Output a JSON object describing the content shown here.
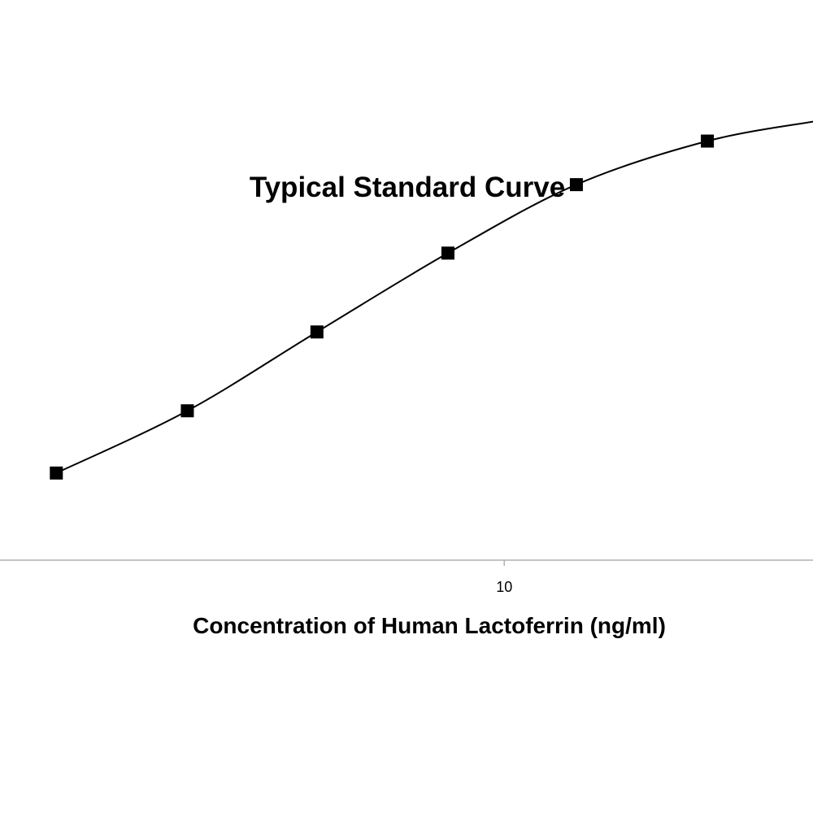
{
  "chart_data": {
    "type": "line",
    "title": "Typical Standard Curve",
    "xlabel": "Concentration of Human Lactoferrin (ng/ml)",
    "ylabel": "",
    "x_scale": "log",
    "x_ticks": [
      {
        "value": 10,
        "label": "10"
      }
    ],
    "series": [
      {
        "marker": "square",
        "color": "#000000",
        "points": [
          {
            "x": 2.5,
            "y": 0.42
          },
          {
            "x": 3.75,
            "y": 0.72
          },
          {
            "x": 5.6,
            "y": 1.1
          },
          {
            "x": 8.4,
            "y": 1.48
          },
          {
            "x": 12.5,
            "y": 1.81
          },
          {
            "x": 18.75,
            "y": 2.02
          }
        ]
      }
    ],
    "xlim": [
      2.1,
      26
    ],
    "ylim": [
      0,
      2.7
    ],
    "grid": false,
    "legend": "none"
  }
}
